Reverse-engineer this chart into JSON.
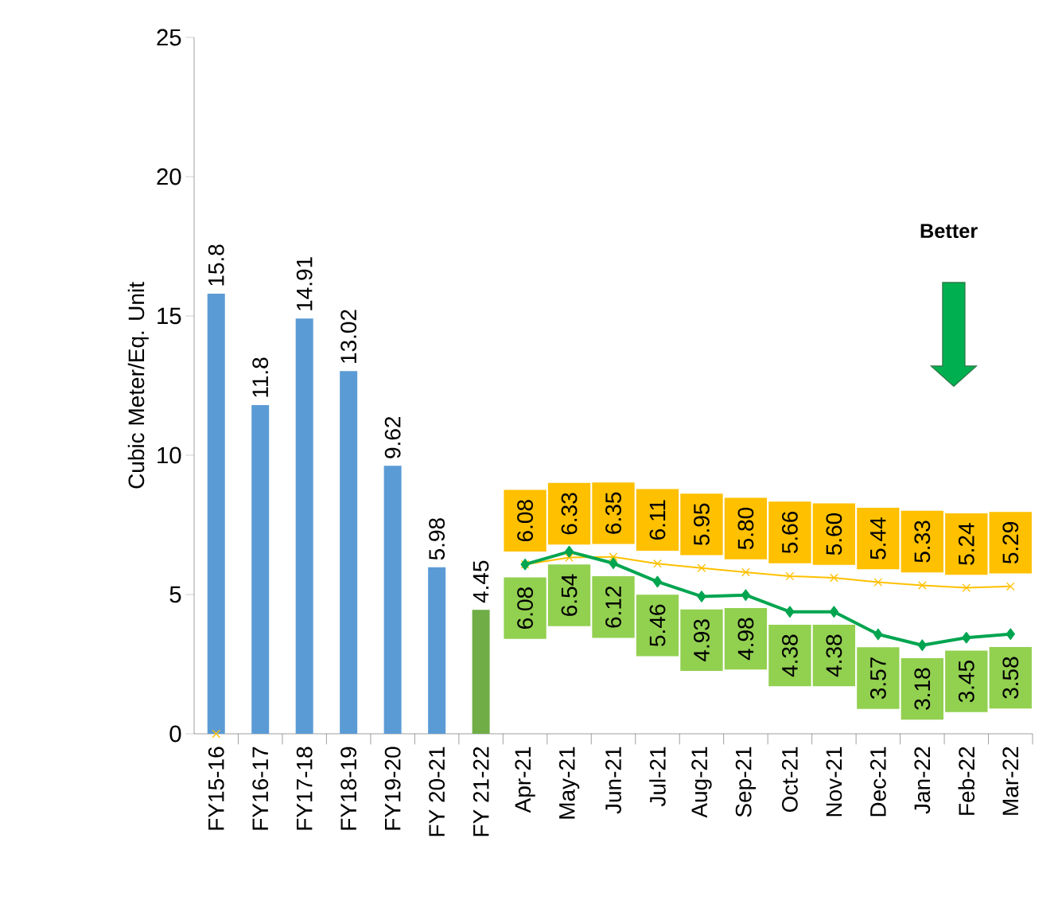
{
  "chart_data": {
    "type": "bar",
    "ylabel": "Cubic Meter/Eq. Unit",
    "annotations": [
      "Better"
    ],
    "categories": [
      "FY15-16",
      "FY16-17",
      "FY17-18",
      "FY18-19",
      "FY19-20",
      "FY 20-21",
      "FY 21-22",
      "Apr-21",
      "May-21",
      "Jun-21",
      "Jul-21",
      "Aug-21",
      "Sep-21",
      "Oct-21",
      "Nov-21",
      "Dec-21",
      "Jan-22",
      "Feb-22",
      "Mar-22"
    ],
    "ylim": [
      0,
      25
    ],
    "yticks": [
      0,
      5,
      10,
      15,
      20,
      25
    ],
    "series": [
      {
        "type": "bar",
        "colors": [
          "#5b9bd5",
          "#5b9bd5",
          "#5b9bd5",
          "#5b9bd5",
          "#5b9bd5",
          "#5b9bd5",
          "#70ad47",
          null,
          null,
          null,
          null,
          null,
          null,
          null,
          null,
          null,
          null,
          null,
          null
        ],
        "values": [
          15.8,
          11.8,
          14.91,
          13.02,
          9.62,
          5.98,
          4.45,
          null,
          null,
          null,
          null,
          null,
          null,
          null,
          null,
          null,
          null,
          null,
          null
        ],
        "value_labels": [
          "15.8",
          "11.8",
          "14.91",
          "13.02",
          "9.62",
          "5.98",
          "4.45",
          null,
          null,
          null,
          null,
          null,
          null,
          null,
          null,
          null,
          null,
          null,
          null
        ]
      },
      {
        "type": "line",
        "color": "#ffc000",
        "marker": "cross",
        "values": [
          0,
          null,
          null,
          null,
          null,
          null,
          null,
          6.08,
          6.33,
          6.35,
          6.11,
          5.95,
          5.8,
          5.66,
          5.6,
          5.44,
          5.33,
          5.24,
          5.29
        ],
        "value_labels": [
          null,
          null,
          null,
          null,
          null,
          null,
          null,
          "6.08",
          "6.33",
          "6.35",
          "6.11",
          "5.95",
          "5.80",
          "5.66",
          "5.60",
          "5.44",
          "5.33",
          "5.24",
          "5.29"
        ]
      },
      {
        "type": "line",
        "color": "#00a550",
        "marker": "diamond",
        "values": [
          null,
          null,
          null,
          null,
          null,
          null,
          null,
          6.08,
          6.54,
          6.12,
          5.46,
          4.93,
          4.98,
          4.38,
          4.38,
          3.57,
          3.18,
          3.45,
          3.58
        ],
        "value_labels": [
          null,
          null,
          null,
          null,
          null,
          null,
          null,
          "6.08",
          "6.54",
          "6.12",
          "5.46",
          "4.93",
          "4.98",
          "4.38",
          "4.38",
          "3.57",
          "3.18",
          "3.45",
          "3.58"
        ]
      }
    ]
  }
}
